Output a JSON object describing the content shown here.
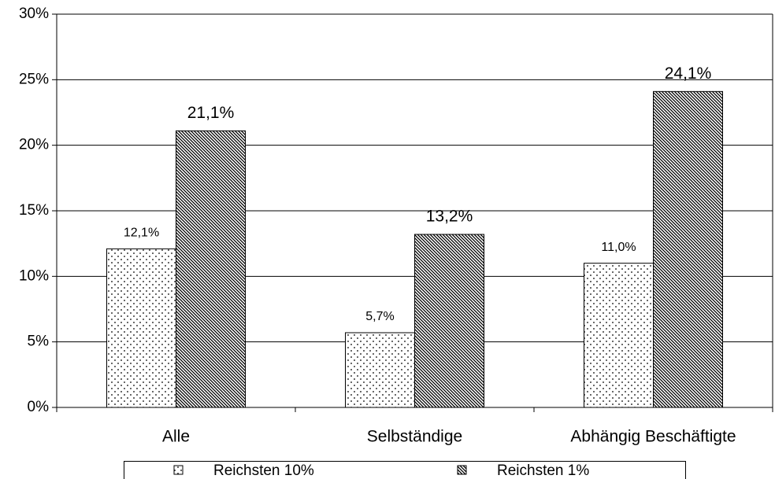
{
  "chart_data": {
    "type": "bar",
    "categories": [
      "Alle",
      "Selbständige",
      "Abhängig Beschäftigte"
    ],
    "series": [
      {
        "name": "Reichsten 10%",
        "pattern": "dots",
        "values": [
          12.1,
          5.7,
          11.0
        ],
        "value_labels": [
          "12,1%",
          "5,7%",
          "11,0%"
        ]
      },
      {
        "name": "Reichsten 1%",
        "pattern": "hatch",
        "values": [
          21.1,
          13.2,
          24.1
        ],
        "value_labels": [
          "21,1%",
          "13,2%",
          "24,1%"
        ]
      }
    ],
    "ylim": [
      0,
      30
    ],
    "yticks": [
      {
        "value": 0,
        "label": "0%"
      },
      {
        "value": 5,
        "label": "5%"
      },
      {
        "value": 10,
        "label": "10%"
      },
      {
        "value": 15,
        "label": "15%"
      },
      {
        "value": 20,
        "label": "20%"
      },
      {
        "value": 25,
        "label": "25%"
      },
      {
        "value": 30,
        "label": "30%"
      }
    ],
    "grid": true,
    "legend": "bottom"
  }
}
